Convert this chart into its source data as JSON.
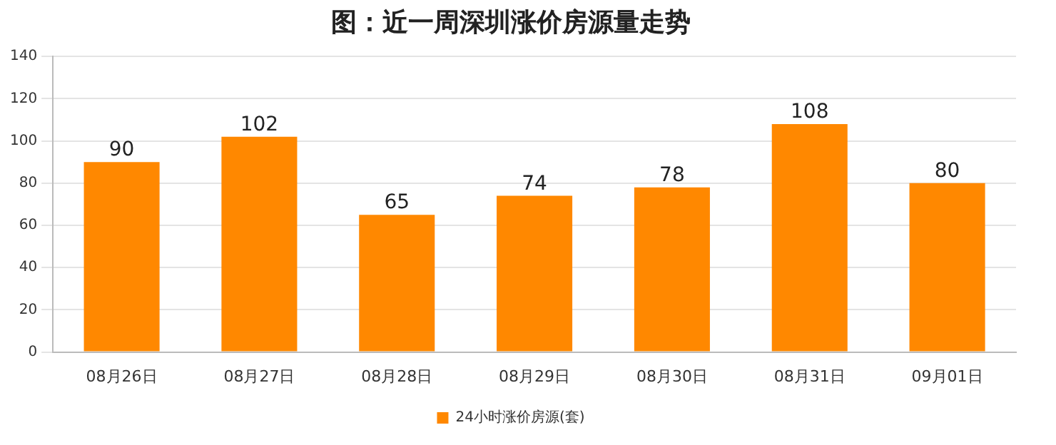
{
  "chart_data": {
    "type": "bar",
    "title": "图：近一周深圳涨价房源量走势",
    "categories": [
      "08月26日",
      "08月27日",
      "08月28日",
      "08月29日",
      "08月30日",
      "08月31日",
      "09月01日"
    ],
    "series": [
      {
        "name": "24小时涨价房源(套)",
        "color": "#ff8800",
        "values": [
          90,
          102,
          65,
          74,
          78,
          108,
          80
        ]
      }
    ],
    "ylim": [
      0,
      140
    ],
    "yticks": [
      0,
      20,
      40,
      60,
      80,
      100,
      120,
      140
    ],
    "grid": "y",
    "legend": "bottom",
    "data_labels": true
  }
}
